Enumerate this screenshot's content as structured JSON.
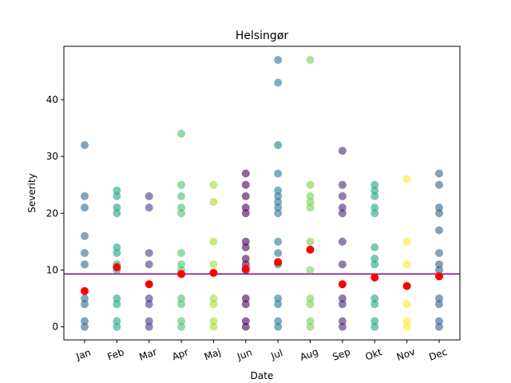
{
  "chart_data": {
    "type": "scatter",
    "title": "Helsingør",
    "xlabel": "Date",
    "ylabel": "Severity",
    "categories": [
      "Jan",
      "Feb",
      "Mar",
      "Apr",
      "Maj",
      "Jun",
      "Jul",
      "Aug",
      "Sep",
      "Okt",
      "Nov",
      "Dec"
    ],
    "ylim": [
      -2.3,
      49.4
    ],
    "yticks": [
      0,
      10,
      20,
      30,
      40
    ],
    "grid": false,
    "reference_line": {
      "value": 9.3,
      "color": "#800080"
    },
    "month_colors": [
      "#31688e",
      "#1fa187",
      "#3f3d8b",
      "#4ac16d",
      "#a5db36",
      "#440154",
      "#2a788e",
      "#7ad151",
      "#482677",
      "#20a386",
      "#fde725",
      "#355f8d"
    ],
    "mean_color": "#ff0000",
    "series": [
      {
        "month": "Jan",
        "points": [
          0,
          1,
          4,
          5,
          11,
          13,
          16,
          21,
          23,
          32
        ],
        "mean": 6.3
      },
      {
        "month": "Feb",
        "points": [
          0,
          1,
          4,
          5,
          10,
          11,
          13,
          14,
          20,
          21,
          23,
          24
        ],
        "mean": 10.5
      },
      {
        "month": "Mar",
        "points": [
          0,
          1,
          4,
          5,
          11,
          13,
          21,
          23
        ],
        "mean": 7.5
      },
      {
        "month": "Apr",
        "points": [
          0,
          1,
          4,
          5,
          10,
          11,
          13,
          20,
          21,
          23,
          25,
          34
        ],
        "mean": 9.3
      },
      {
        "month": "Maj",
        "points": [
          0,
          1,
          4,
          5,
          11,
          15,
          22,
          25
        ],
        "mean": 9.5
      },
      {
        "month": "Jun",
        "points": [
          0,
          1,
          4,
          5,
          10,
          11,
          12,
          14,
          15,
          20,
          21,
          23,
          25,
          27
        ],
        "mean": 10.2
      },
      {
        "month": "Jul",
        "points": [
          0,
          1,
          4,
          5,
          11,
          13,
          15,
          20,
          21,
          22,
          23,
          24,
          27,
          32,
          43,
          47
        ],
        "mean": 11.4
      },
      {
        "month": "Aug",
        "points": [
          0,
          1,
          4,
          5,
          10,
          15,
          21,
          22,
          23,
          25,
          47
        ],
        "mean": 13.6
      },
      {
        "month": "Sep",
        "points": [
          0,
          1,
          4,
          5,
          11,
          15,
          20,
          21,
          23,
          25,
          31
        ],
        "mean": 7.5
      },
      {
        "month": "Okt",
        "points": [
          0,
          1,
          4,
          5,
          11,
          12,
          14,
          20,
          21,
          23,
          24,
          25
        ],
        "mean": 8.7
      },
      {
        "month": "Nov",
        "points": [
          0,
          1,
          4,
          11,
          15,
          26
        ],
        "mean": 7.2
      },
      {
        "month": "Dec",
        "points": [
          0,
          1,
          4,
          5,
          10,
          11,
          13,
          17,
          20,
          21,
          25,
          27
        ],
        "mean": 8.9
      }
    ]
  }
}
